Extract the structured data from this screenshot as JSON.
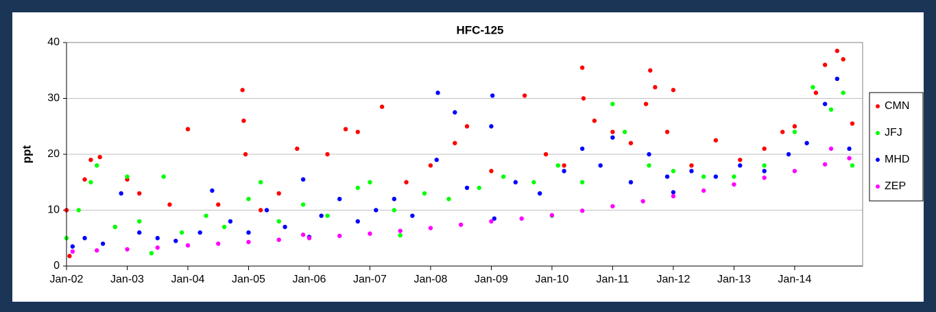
{
  "chart_data": {
    "type": "scatter",
    "title": "HFC-125",
    "y_label": "ppt",
    "xlim": [
      2002,
      2015.12
    ],
    "xticks": [
      {
        "value": 2002,
        "label": "Jan-02"
      },
      {
        "value": 2003,
        "label": "Jan-03"
      },
      {
        "value": 2004,
        "label": "Jan-04"
      },
      {
        "value": 2005,
        "label": "Jan-05"
      },
      {
        "value": 2006,
        "label": "Jan-06"
      },
      {
        "value": 2007,
        "label": "Jan-07"
      },
      {
        "value": 2008,
        "label": "Jan-08"
      },
      {
        "value": 2009,
        "label": "Jan-09"
      },
      {
        "value": 2010,
        "label": "Jan-10"
      },
      {
        "value": 2011,
        "label": "Jan-11"
      },
      {
        "value": 2012,
        "label": "Jan-12"
      },
      {
        "value": 2013,
        "label": "Jan-13"
      },
      {
        "value": 2014,
        "label": "Jan-14"
      }
    ],
    "ylim": [
      0,
      40
    ],
    "yticks": [
      0,
      10,
      20,
      30,
      40
    ],
    "grid": true,
    "legend": "right",
    "series": [
      {
        "name": "CMN",
        "color": "#ff0000",
        "x": [
          2002.05,
          2002.0,
          2002.3,
          2002.4,
          2002.55,
          2002.8,
          2003.0,
          2003.2,
          2003.7,
          2004.0,
          2004.5,
          2004.9,
          2004.92,
          2004.95,
          2005.2,
          2005.5,
          2005.8,
          2006.3,
          2006.6,
          2006.8,
          2007.2,
          2007.6,
          2008.0,
          2008.4,
          2008.6,
          2009.0,
          2009.55,
          2009.9,
          2010.2,
          2010.5,
          2010.52,
          2010.7,
          2011.0,
          2011.3,
          2011.55,
          2011.62,
          2011.7,
          2011.9,
          2012.0,
          2012.3,
          2012.7,
          2013.1,
          2013.5,
          2013.8,
          2014.0,
          2014.35,
          2014.5,
          2014.7,
          2014.8,
          2014.95
        ],
        "values": [
          1.8,
          10,
          15.5,
          19,
          19.5,
          7,
          15.5,
          13,
          11,
          24.5,
          11,
          31.5,
          26,
          20,
          10,
          13,
          21,
          20,
          24.5,
          24,
          28.5,
          15,
          18,
          22,
          25,
          17,
          30.5,
          20,
          18,
          35.5,
          30,
          26,
          24,
          22,
          29,
          35,
          32,
          24,
          31.5,
          18,
          22.5,
          19,
          21,
          24,
          25,
          31,
          36,
          38.5,
          37,
          25.5
        ]
      },
      {
        "name": "JFJ",
        "color": "#00ff00",
        "x": [
          2002.0,
          2002.2,
          2002.4,
          2002.5,
          2002.8,
          2003.0,
          2003.2,
          2003.4,
          2003.6,
          2003.9,
          2004.3,
          2004.6,
          2005.0,
          2005.2,
          2005.5,
          2005.9,
          2006.3,
          2006.8,
          2007.0,
          2007.4,
          2007.5,
          2007.9,
          2008.3,
          2008.8,
          2009.2,
          2009.7,
          2010.0,
          2010.1,
          2010.5,
          2011.0,
          2011.2,
          2011.6,
          2012.0,
          2012.5,
          2013.0,
          2013.5,
          2014.0,
          2014.3,
          2014.6,
          2014.8,
          2014.95
        ],
        "values": [
          5,
          10,
          15,
          18,
          7,
          16,
          8,
          2.3,
          16,
          6,
          9,
          7,
          12,
          15,
          8,
          11,
          9,
          14,
          15,
          10,
          5.5,
          13,
          12,
          14,
          16,
          15,
          9,
          18,
          15,
          29,
          24,
          18,
          17,
          16,
          16,
          18,
          24,
          32,
          28,
          31,
          18
        ]
      },
      {
        "name": "MHD",
        "color": "#0000ff",
        "x": [
          2002.1,
          2002.3,
          2002.6,
          2002.9,
          2003.2,
          2003.5,
          2003.8,
          2004.2,
          2004.4,
          2004.7,
          2005.0,
          2005.3,
          2005.6,
          2005.9,
          2006.0,
          2006.2,
          2006.5,
          2006.8,
          2007.1,
          2007.4,
          2007.7,
          2008.1,
          2008.12,
          2008.4,
          2008.6,
          2009.0,
          2009.02,
          2009.05,
          2009.4,
          2009.8,
          2010.2,
          2010.5,
          2010.8,
          2011.0,
          2011.3,
          2011.6,
          2011.9,
          2012.0,
          2012.3,
          2012.7,
          2013.1,
          2013.5,
          2013.9,
          2014.2,
          2014.5,
          2014.7,
          2014.9
        ],
        "values": [
          3.5,
          5,
          4,
          13,
          6,
          5,
          4.5,
          6,
          13.5,
          8,
          6,
          10,
          7,
          15.5,
          5.2,
          9,
          12,
          8,
          10,
          12,
          9,
          19,
          31,
          27.5,
          14,
          25,
          30.5,
          8.5,
          15,
          13,
          17,
          21,
          18,
          23,
          15,
          20,
          16,
          13.2,
          17,
          16,
          18,
          17,
          20,
          22,
          29,
          33.5,
          21
        ]
      },
      {
        "name": "ZEP",
        "color": "#ff00ff",
        "x": [
          2002.1,
          2002.5,
          2003.0,
          2003.5,
          2004.0,
          2004.5,
          2005.0,
          2005.5,
          2005.9,
          2006.0,
          2006.5,
          2007.0,
          2007.5,
          2008.0,
          2008.5,
          2009.0,
          2009.5,
          2010.0,
          2010.5,
          2011.0,
          2011.5,
          2012.0,
          2012.5,
          2013.0,
          2013.5,
          2014.0,
          2014.5,
          2014.6,
          2014.9
        ],
        "values": [
          2.6,
          2.8,
          3.0,
          3.3,
          3.7,
          4.0,
          4.3,
          4.7,
          5.6,
          5.0,
          5.4,
          5.8,
          6.3,
          6.8,
          7.4,
          8.0,
          8.5,
          9.1,
          9.9,
          10.7,
          11.6,
          12.5,
          13.5,
          14.6,
          15.8,
          17.0,
          18.2,
          21,
          19.3
        ]
      }
    ]
  }
}
